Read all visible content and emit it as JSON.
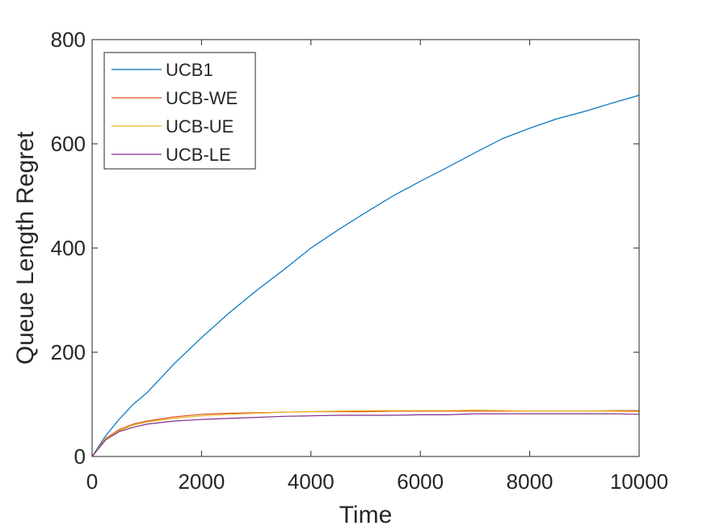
{
  "chart_data": {
    "type": "line",
    "xlabel": "Time",
    "ylabel": "Queue Length Regret",
    "xlim": [
      0,
      10000
    ],
    "ylim": [
      0,
      800
    ],
    "xticks": [
      0,
      2000,
      4000,
      6000,
      8000,
      10000
    ],
    "yticks": [
      0,
      200,
      400,
      600,
      800
    ],
    "grid": false,
    "legend_position": "top-left",
    "series": [
      {
        "name": "UCB1",
        "color": "#0072BD",
        "x": [
          0,
          250,
          500,
          750,
          1000,
          1500,
          2000,
          2500,
          3000,
          3500,
          4000,
          4500,
          5000,
          5500,
          6000,
          6500,
          7000,
          7500,
          8000,
          8500,
          9000,
          9500,
          10000
        ],
        "y": [
          0,
          40,
          72,
          100,
          122,
          178,
          228,
          275,
          318,
          358,
          400,
          435,
          468,
          500,
          528,
          555,
          583,
          610,
          630,
          648,
          662,
          678,
          693
        ]
      },
      {
        "name": "UCB-WE",
        "color": "#D95319",
        "x": [
          0,
          250,
          500,
          750,
          1000,
          1500,
          2000,
          2500,
          3000,
          3500,
          4000,
          4500,
          5000,
          5500,
          6000,
          6500,
          7000,
          7500,
          8000,
          8500,
          9000,
          9500,
          10000
        ],
        "y": [
          0,
          35,
          52,
          62,
          68,
          76,
          81,
          83,
          84,
          85,
          86,
          86,
          86,
          87,
          87,
          87,
          87,
          87,
          87,
          87,
          87,
          88,
          88
        ]
      },
      {
        "name": "UCB-UE",
        "color": "#EDB120",
        "x": [
          0,
          250,
          500,
          750,
          1000,
          1500,
          2000,
          2500,
          3000,
          3500,
          4000,
          4500,
          5000,
          5500,
          6000,
          6500,
          7000,
          7500,
          8000,
          8500,
          9000,
          9500,
          10000
        ],
        "y": [
          0,
          34,
          50,
          60,
          66,
          73,
          78,
          81,
          83,
          85,
          86,
          87,
          88,
          88,
          88,
          88,
          89,
          88,
          87,
          87,
          87,
          87,
          86
        ]
      },
      {
        "name": "UCB-LE",
        "color": "#7E2F8E",
        "x": [
          0,
          250,
          500,
          750,
          1000,
          1500,
          2000,
          2500,
          3000,
          3500,
          4000,
          4500,
          5000,
          5500,
          6000,
          6500,
          7000,
          7500,
          8000,
          8500,
          9000,
          9500,
          10000
        ],
        "y": [
          0,
          32,
          48,
          56,
          62,
          68,
          71,
          73,
          75,
          77,
          78,
          79,
          79,
          79,
          80,
          80,
          82,
          82,
          82,
          82,
          82,
          82,
          81
        ]
      }
    ]
  }
}
